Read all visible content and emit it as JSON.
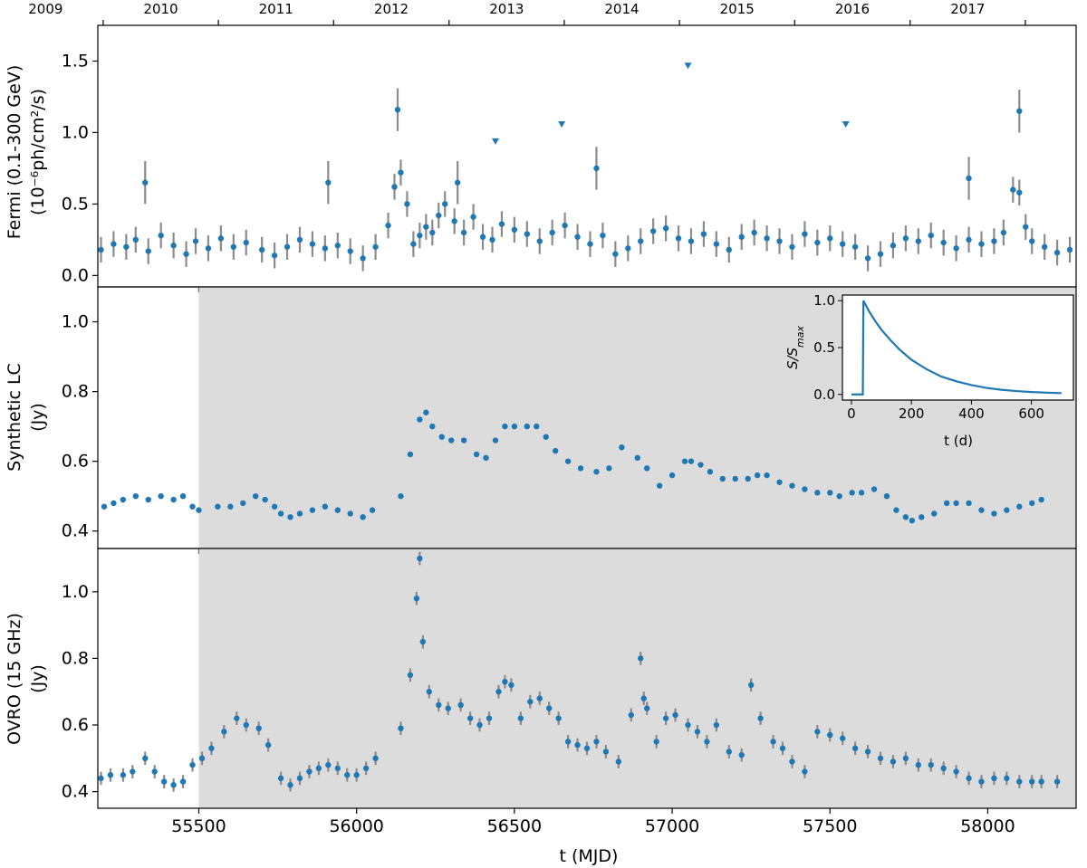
{
  "figure": {
    "xlabel": "t (MJD)",
    "top_axis_years": [
      "2009",
      "2010",
      "2011",
      "2012",
      "2013",
      "2014",
      "2015",
      "2016",
      "2017"
    ]
  },
  "colors": {
    "points": "#1f77b4",
    "errorbars": "#8c8c8c",
    "shade": "#dcdcdc"
  },
  "chart_data": [
    {
      "type": "scatter",
      "panel": "fermi",
      "ylabel_line1": "Fermi (0.1-300 GeV)",
      "ylabel_line2": "(10⁻⁶ph/cm²/s)",
      "xlim": [
        55180,
        58280
      ],
      "ylim": [
        -0.08,
        1.75
      ],
      "yticks": [
        "0.0",
        "0.5",
        "1.0",
        "1.5"
      ],
      "x": [
        55190,
        55230,
        55270,
        55300,
        55340,
        55380,
        55420,
        55460,
        55490,
        55530,
        55570,
        55610,
        55650,
        55700,
        55740,
        55780,
        55820,
        55860,
        55900,
        55940,
        55980,
        56020,
        56060,
        56100,
        56120,
        56140,
        56160,
        56180,
        56200,
        56220,
        56240,
        56260,
        56280,
        56310,
        56340,
        56370,
        56400,
        56430,
        56460,
        56500,
        56540,
        56580,
        56620,
        56660,
        56700,
        56740,
        56780,
        56820,
        56860,
        56900,
        56940,
        56980,
        57020,
        57060,
        57100,
        57140,
        57180,
        57220,
        57260,
        57300,
        57340,
        57380,
        57420,
        57460,
        57500,
        57540,
        57580,
        57620,
        57660,
        57700,
        57740,
        57780,
        57820,
        57860,
        57900,
        57940,
        57980,
        58020,
        58050,
        58080,
        58100,
        58120,
        58140,
        58180,
        58220,
        58260
      ],
      "y": [
        0.18,
        0.22,
        0.2,
        0.25,
        0.17,
        0.28,
        0.21,
        0.15,
        0.24,
        0.19,
        0.26,
        0.2,
        0.23,
        0.18,
        0.14,
        0.2,
        0.25,
        0.22,
        0.19,
        0.21,
        0.17,
        0.12,
        0.2,
        0.35,
        0.62,
        0.72,
        0.5,
        0.22,
        0.28,
        0.34,
        0.3,
        0.42,
        0.5,
        0.38,
        0.3,
        0.41,
        0.27,
        0.25,
        0.36,
        0.32,
        0.29,
        0.24,
        0.3,
        0.35,
        0.27,
        0.22,
        0.28,
        0.15,
        0.19,
        0.24,
        0.31,
        0.33,
        0.26,
        0.24,
        0.29,
        0.22,
        0.18,
        0.27,
        0.3,
        0.26,
        0.24,
        0.2,
        0.29,
        0.23,
        0.26,
        0.22,
        0.2,
        0.12,
        0.15,
        0.21,
        0.26,
        0.24,
        0.28,
        0.23,
        0.19,
        0.25,
        0.22,
        0.24,
        0.3,
        0.6,
        0.58,
        0.34,
        0.24,
        0.2,
        0.16,
        0.18
      ],
      "highlights": [
        {
          "x": 56130,
          "y": 1.16
        },
        {
          "x": 58100,
          "y": 1.15
        },
        {
          "x": 55330,
          "y": 0.65
        },
        {
          "x": 55910,
          "y": 0.65
        },
        {
          "x": 56320,
          "y": 0.65
        },
        {
          "x": 56760,
          "y": 0.75
        },
        {
          "x": 57940,
          "y": 0.68
        }
      ],
      "upper_limits": {
        "x": [
          56440,
          56650,
          57050,
          57550
        ],
        "y": [
          0.94,
          1.06,
          1.47,
          1.06
        ]
      }
    },
    {
      "type": "scatter",
      "panel": "synthetic",
      "ylabel_line1": "Synthetic LC",
      "ylabel_line2": "(Jy)",
      "xlim": [
        55180,
        58280
      ],
      "ylim": [
        0.35,
        1.1
      ],
      "yticks": [
        "0.4",
        "0.6",
        "0.8",
        "1.0"
      ],
      "shade_from": 55500,
      "x": [
        55200,
        55230,
        55260,
        55300,
        55340,
        55380,
        55420,
        55450,
        55480,
        55500,
        55560,
        55600,
        55640,
        55680,
        55710,
        55740,
        55760,
        55790,
        55820,
        55860,
        55900,
        55940,
        55980,
        56020,
        56050,
        56140,
        56170,
        56200,
        56220,
        56240,
        56270,
        56300,
        56340,
        56380,
        56410,
        56440,
        56470,
        56500,
        56540,
        56570,
        56600,
        56630,
        56670,
        56710,
        56760,
        56800,
        56840,
        56890,
        56920,
        56960,
        57000,
        57040,
        57060,
        57090,
        57120,
        57160,
        57200,
        57240,
        57270,
        57300,
        57340,
        57380,
        57420,
        57460,
        57500,
        57530,
        57570,
        57600,
        57640,
        57680,
        57710,
        57740,
        57760,
        57790,
        57830,
        57870,
        57900,
        57940,
        57980,
        58020,
        58060,
        58100,
        58140,
        58170
      ],
      "y": [
        0.47,
        0.48,
        0.49,
        0.5,
        0.49,
        0.5,
        0.49,
        0.5,
        0.47,
        0.46,
        0.47,
        0.47,
        0.48,
        0.5,
        0.49,
        0.47,
        0.45,
        0.44,
        0.45,
        0.46,
        0.47,
        0.46,
        0.45,
        0.44,
        0.46,
        0.5,
        0.62,
        0.72,
        0.74,
        0.7,
        0.67,
        0.66,
        0.66,
        0.62,
        0.61,
        0.66,
        0.7,
        0.7,
        0.7,
        0.7,
        0.67,
        0.63,
        0.6,
        0.58,
        0.57,
        0.58,
        0.64,
        0.61,
        0.58,
        0.53,
        0.56,
        0.6,
        0.6,
        0.59,
        0.57,
        0.55,
        0.55,
        0.55,
        0.56,
        0.56,
        0.54,
        0.53,
        0.52,
        0.51,
        0.51,
        0.5,
        0.51,
        0.51,
        0.52,
        0.5,
        0.46,
        0.44,
        0.43,
        0.44,
        0.45,
        0.48,
        0.48,
        0.48,
        0.46,
        0.45,
        0.46,
        0.47,
        0.48,
        0.49
      ]
    },
    {
      "type": "scatter",
      "panel": "ovro",
      "ylabel_line1": "OVRO (15 GHz)",
      "ylabel_line2": "(Jy)",
      "xlim": [
        55180,
        58280
      ],
      "ylim": [
        0.35,
        1.13
      ],
      "yticks": [
        "0.4",
        "0.6",
        "0.8",
        "1.0"
      ],
      "shade_from": 55500,
      "x": [
        55190,
        55220,
        55260,
        55290,
        55330,
        55360,
        55390,
        55420,
        55450,
        55480,
        55510,
        55540,
        55580,
        55620,
        55650,
        55690,
        55720,
        55760,
        55790,
        55820,
        55850,
        55880,
        55910,
        55940,
        55970,
        56000,
        56030,
        56060,
        56140,
        56170,
        56190,
        56200,
        56210,
        56230,
        56260,
        56290,
        56330,
        56360,
        56390,
        56420,
        56450,
        56470,
        56490,
        56520,
        56550,
        56580,
        56610,
        56640,
        56670,
        56700,
        56730,
        56760,
        56790,
        56830,
        56870,
        56900,
        56910,
        56920,
        56950,
        56980,
        57010,
        57050,
        57080,
        57110,
        57140,
        57180,
        57220,
        57250,
        57280,
        57320,
        57350,
        57380,
        57420,
        57460,
        57500,
        57540,
        57580,
        57620,
        57660,
        57700,
        57740,
        57780,
        57820,
        57860,
        57900,
        57940,
        57980,
        58020,
        58060,
        58100,
        58140,
        58170,
        58220
      ],
      "y": [
        0.44,
        0.45,
        0.45,
        0.46,
        0.5,
        0.46,
        0.43,
        0.42,
        0.43,
        0.48,
        0.5,
        0.53,
        0.58,
        0.62,
        0.6,
        0.59,
        0.54,
        0.44,
        0.42,
        0.44,
        0.46,
        0.47,
        0.48,
        0.47,
        0.45,
        0.45,
        0.47,
        0.5,
        0.59,
        0.75,
        0.98,
        1.1,
        0.85,
        0.7,
        0.66,
        0.65,
        0.66,
        0.62,
        0.6,
        0.62,
        0.7,
        0.73,
        0.72,
        0.62,
        0.67,
        0.68,
        0.65,
        0.62,
        0.55,
        0.54,
        0.53,
        0.55,
        0.52,
        0.49,
        0.63,
        0.8,
        0.68,
        0.65,
        0.55,
        0.62,
        0.63,
        0.6,
        0.58,
        0.55,
        0.6,
        0.52,
        0.51,
        0.72,
        0.62,
        0.55,
        0.53,
        0.49,
        0.46,
        0.58,
        0.57,
        0.56,
        0.53,
        0.52,
        0.5,
        0.49,
        0.5,
        0.48,
        0.48,
        0.47,
        0.46,
        0.44,
        0.43,
        0.44,
        0.44,
        0.43,
        0.43,
        0.43,
        0.43
      ]
    },
    {
      "type": "line",
      "panel": "inset",
      "xlabel": "t (d)",
      "ylabel": "S/S_max",
      "xlim": [
        -30,
        740
      ],
      "ylim": [
        -0.06,
        1.06
      ],
      "xticks": [
        "0",
        "200",
        "400",
        "600"
      ],
      "yticks": [
        "0.0",
        "0.5",
        "1.0"
      ],
      "x": [
        0,
        38,
        40,
        60,
        80,
        100,
        130,
        160,
        200,
        250,
        300,
        350,
        400,
        450,
        500,
        550,
        600,
        650,
        700
      ],
      "y": [
        0,
        0,
        1.0,
        0.88,
        0.78,
        0.69,
        0.58,
        0.48,
        0.37,
        0.27,
        0.19,
        0.14,
        0.1,
        0.07,
        0.05,
        0.036,
        0.026,
        0.019,
        0.014
      ]
    }
  ]
}
